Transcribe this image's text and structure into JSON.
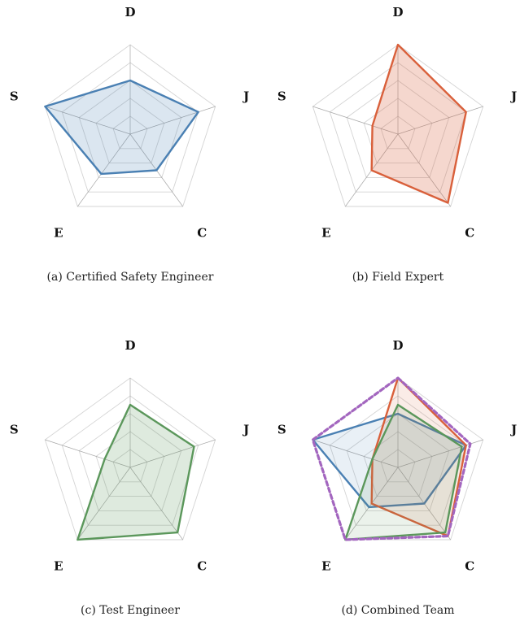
{
  "figure": {
    "axes": [
      "D",
      "J",
      "C",
      "E",
      "S"
    ],
    "rlim": [
      0,
      1
    ],
    "rings": [
      0.2,
      0.4,
      0.6,
      0.8,
      1.0
    ],
    "grid": true,
    "colors": {
      "grid_ring": "#d4d4d4",
      "grid_spoke": "#a8a8a8",
      "safety_engineer": "#4a80b3",
      "field_expert": "#d9603b",
      "test_engineer": "#5b975b",
      "combined_team": "#a366bf"
    }
  },
  "chart_data": [
    {
      "type": "radar",
      "panel": "a",
      "title": "(a) Certified Safety Engineer",
      "axes": [
        "D",
        "J",
        "C",
        "E",
        "S"
      ],
      "series": [
        {
          "key": "safety_engineer",
          "values": [
            0.6,
            0.8,
            0.5,
            0.55,
            1.0
          ],
          "fill_opacity": 0.2,
          "dashed": false
        }
      ]
    },
    {
      "type": "radar",
      "panel": "b",
      "title": "(b) Field Expert",
      "axes": [
        "D",
        "J",
        "C",
        "E",
        "S"
      ],
      "series": [
        {
          "key": "field_expert",
          "values": [
            1.0,
            0.8,
            0.95,
            0.5,
            0.3
          ],
          "fill_opacity": 0.25,
          "dashed": false
        }
      ]
    },
    {
      "type": "radar",
      "panel": "c",
      "title": "(c) Test Engineer",
      "axes": [
        "D",
        "J",
        "C",
        "E",
        "S"
      ],
      "series": [
        {
          "key": "test_engineer",
          "values": [
            0.7,
            0.75,
            0.9,
            1.0,
            0.3
          ],
          "fill_opacity": 0.2,
          "dashed": false
        }
      ]
    },
    {
      "type": "radar",
      "panel": "d",
      "title": "(d) Combined Team",
      "axes": [
        "D",
        "J",
        "C",
        "E",
        "S"
      ],
      "series": [
        {
          "key": "safety_engineer",
          "values": [
            0.6,
            0.8,
            0.5,
            0.55,
            1.0
          ],
          "fill_opacity": 0.12,
          "dashed": false
        },
        {
          "key": "field_expert",
          "values": [
            1.0,
            0.8,
            0.95,
            0.5,
            0.3
          ],
          "fill_opacity": 0.12,
          "dashed": false
        },
        {
          "key": "test_engineer",
          "values": [
            0.7,
            0.75,
            0.9,
            1.0,
            0.3
          ],
          "fill_opacity": 0.12,
          "dashed": false
        },
        {
          "key": "combined_team",
          "values": [
            1.0,
            0.85,
            0.95,
            1.0,
            1.0
          ],
          "fill_opacity": 0.0,
          "dashed": true
        }
      ]
    }
  ]
}
